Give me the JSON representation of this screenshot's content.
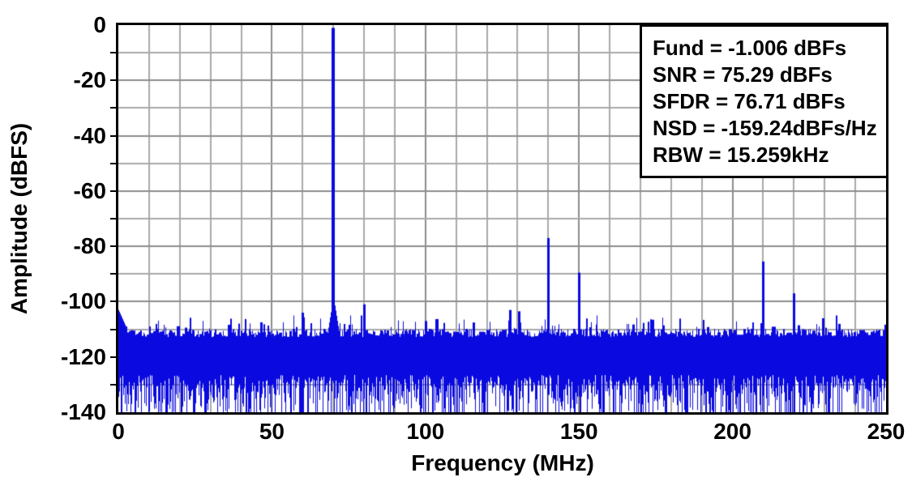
{
  "figure": {
    "background": "#ffffff"
  },
  "chart_data": {
    "type": "line",
    "subtype": "fft-spectrum",
    "title": "",
    "xlabel": "Frequency (MHz)",
    "ylabel": "Amplitude (dBFS)",
    "xlim": [
      0,
      250
    ],
    "ylim": [
      -140,
      0
    ],
    "x_ticks": [
      0,
      50,
      100,
      150,
      200,
      250
    ],
    "y_ticks": [
      0,
      -20,
      -40,
      -60,
      -80,
      -100,
      -120,
      -140
    ],
    "grid": {
      "on": true,
      "x_step_mhz": 10,
      "y_step_db": 10,
      "minor_color": "#a9a9a9",
      "major_color": "#8d8d8d"
    },
    "series_color": "#0a0ae0",
    "fundamental": {
      "freq_mhz": 70,
      "level_dbfs": -1.006
    },
    "spurs": [
      {
        "freq_mhz": 60,
        "level_dbfs": -104
      },
      {
        "freq_mhz": 80,
        "level_dbfs": -101
      },
      {
        "freq_mhz": 100,
        "level_dbfs": -107
      },
      {
        "freq_mhz": 127.5,
        "level_dbfs": -103
      },
      {
        "freq_mhz": 130.5,
        "level_dbfs": -103.5
      },
      {
        "freq_mhz": 140,
        "level_dbfs": -77
      },
      {
        "freq_mhz": 150,
        "level_dbfs": -89.5
      },
      {
        "freq_mhz": 210,
        "level_dbfs": -85.5
      },
      {
        "freq_mhz": 220,
        "level_dbfs": -97
      }
    ],
    "noise_floor": {
      "top_mean_dbfs": -111.3,
      "top_peak_dbfs": -105,
      "solid_to_dbfs": -127,
      "min_dbfs": -140,
      "dc_peak_dbfs": -103,
      "rng_seed": 7
    },
    "legend": {
      "position": "top-right",
      "lines": [
        "Fund = -1.006 dBFs",
        "SNR = 75.29 dBFs",
        "SFDR = 76.71 dBFs",
        "NSD = -159.24dBFs/Hz",
        "RBW = 15.259kHz"
      ]
    }
  }
}
